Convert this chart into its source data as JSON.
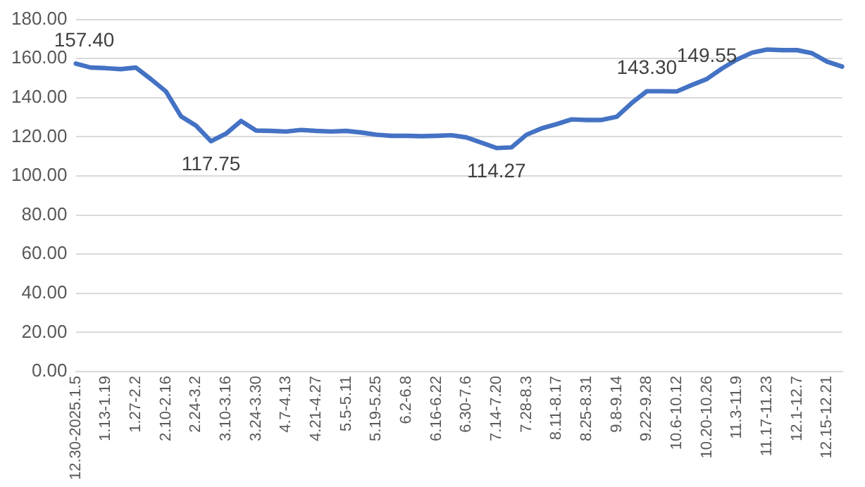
{
  "chart_data": {
    "type": "line",
    "categories": [
      "12.30-2025.1.5",
      null,
      "1.13-1.19",
      null,
      "1.27-2.2",
      null,
      "2.10-2.16",
      null,
      "2.24-3.2",
      null,
      "3.10-3.16",
      null,
      "3.24-3.30",
      null,
      "4.7-4.13",
      null,
      "4.21-4.27",
      null,
      "5.5-5.11",
      null,
      "5.19-5.25",
      null,
      "6.2-6.8",
      null,
      "6.16-6.22",
      null,
      "6.30-7.6",
      null,
      "7.14-7.20",
      null,
      "7.28-8.3",
      null,
      "8.11-8.17",
      null,
      "8.25-8.31",
      null,
      "9.8-9.14",
      null,
      "9.22-9.28",
      null,
      "10.6-10.12",
      null,
      "10.20-10.26",
      null,
      "11.3-11.9",
      null,
      "11.17-11.23",
      null,
      "12.1-12.7",
      null,
      "12.15-12.21",
      null
    ],
    "series": [
      {
        "color": "#4472c4",
        "values": [
          157.4,
          155.4,
          155.1,
          154.6,
          155.4,
          149.5,
          143.2,
          130.5,
          125.7,
          117.75,
          121.6,
          128.1,
          123.2,
          123.0,
          122.7,
          123.5,
          123.0,
          122.7,
          123.0,
          122.2,
          121.1,
          120.5,
          120.5,
          120.3,
          120.5,
          120.8,
          119.7,
          117.0,
          114.27,
          114.6,
          121.1,
          124.3,
          126.5,
          128.9,
          128.6,
          128.6,
          130.3,
          137.3,
          143.3,
          143.3,
          143.2,
          146.5,
          149.55,
          154.9,
          159.5,
          163.0,
          164.6,
          164.3,
          164.3,
          162.7,
          158.4,
          155.9
        ],
        "value_labels": [
          "157.40",
          null,
          null,
          null,
          null,
          null,
          null,
          null,
          null,
          "117.75",
          null,
          null,
          null,
          null,
          null,
          null,
          null,
          null,
          null,
          null,
          null,
          null,
          null,
          null,
          null,
          null,
          null,
          null,
          "114.27",
          null,
          null,
          null,
          null,
          null,
          null,
          null,
          null,
          null,
          "143.30",
          null,
          null,
          null,
          "149.55",
          null,
          null,
          null,
          null,
          null,
          null,
          null,
          null,
          null
        ]
      }
    ],
    "ylim": [
      0,
      180
    ],
    "yticks": [
      {
        "value": 0,
        "label": "0.00"
      },
      {
        "value": 20,
        "label": "20.00"
      },
      {
        "value": 40,
        "label": "40.00"
      },
      {
        "value": 60,
        "label": "60.00"
      },
      {
        "value": 80,
        "label": "80.00"
      },
      {
        "value": 100,
        "label": "100.00"
      },
      {
        "value": 120,
        "label": "120.00"
      },
      {
        "value": 140,
        "label": "140.00"
      },
      {
        "value": 160,
        "label": "160.00"
      },
      {
        "value": 180,
        "label": "180.00"
      }
    ],
    "grid": "y",
    "legend": false,
    "marker": "none",
    "line_style": "solid"
  }
}
